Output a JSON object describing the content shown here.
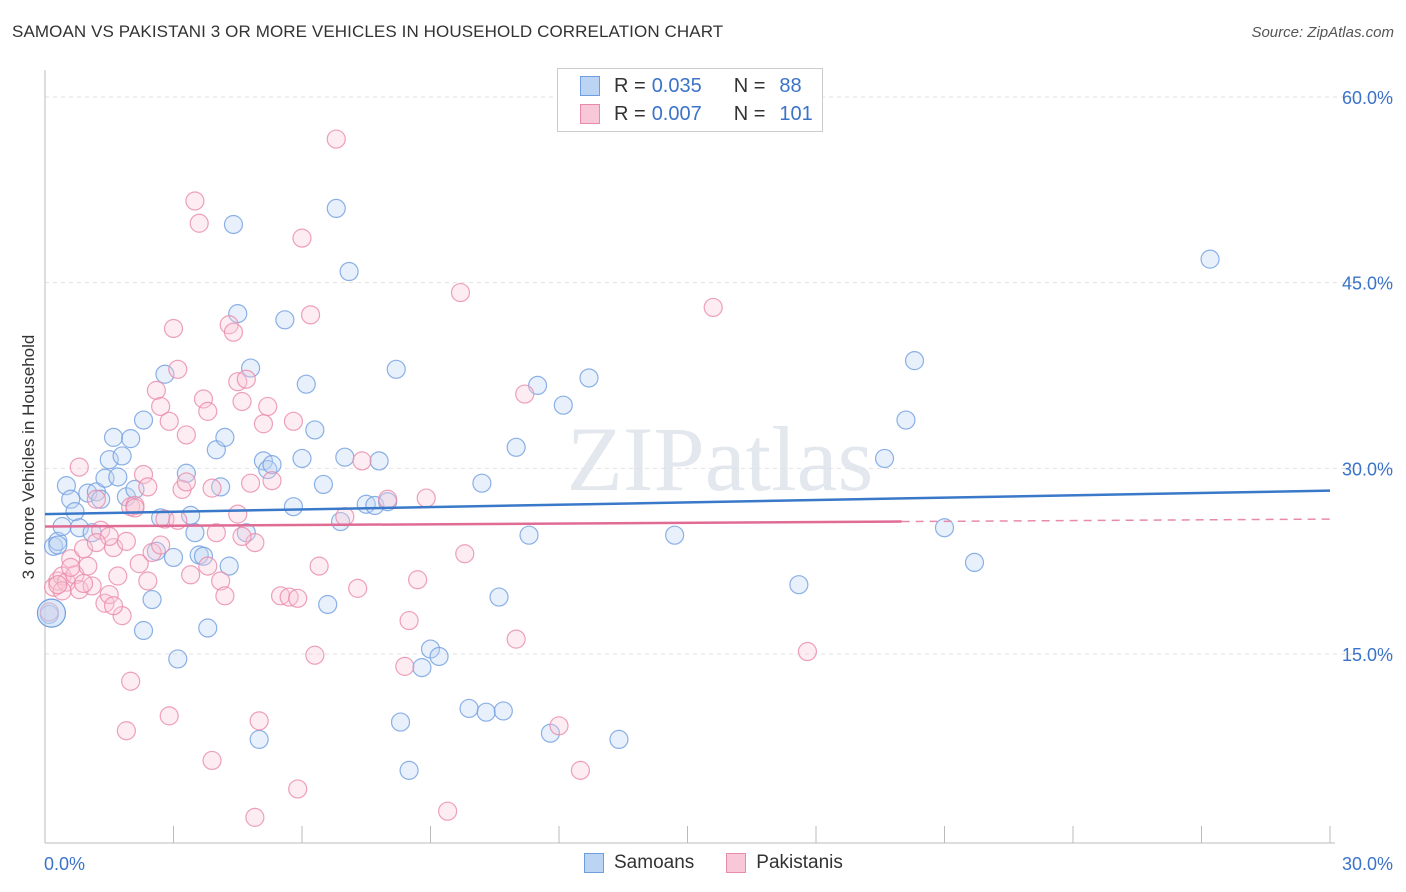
{
  "title": "SAMOAN VS PAKISTANI 3 OR MORE VEHICLES IN HOUSEHOLD CORRELATION CHART",
  "source": "Source: ZipAtlas.com",
  "watermark": "ZIPatlas",
  "legend": {
    "rows": [
      {
        "r_label": "R =",
        "r_value": "0.035",
        "n_label": "N =",
        "n_value": "88",
        "color": "#6f9ee0",
        "fill": "#bcd4f3"
      },
      {
        "r_label": "R =",
        "r_value": "0.007",
        "n_label": "N =",
        "n_value": "101",
        "color": "#e88aaa",
        "fill": "#f8c8d8"
      }
    ]
  },
  "bottom_legend": [
    {
      "label": "Samoans",
      "color": "#6f9ee0",
      "fill": "#bcd4f3"
    },
    {
      "label": "Pakistanis",
      "color": "#e88aaa",
      "fill": "#f8c8d8"
    }
  ],
  "chart_data": {
    "type": "scatter",
    "title": "SAMOAN VS PAKISTANI 3 OR MORE VEHICLES IN HOUSEHOLD CORRELATION CHART",
    "ylabel": "3 or more Vehicles in Household",
    "xlabel": "",
    "xlim": [
      0,
      30
    ],
    "ylim": [
      0,
      62
    ],
    "x_ticks": [
      "0.0%",
      "30.0%"
    ],
    "y_ticks": [
      {
        "value": 15,
        "label": "15.0%"
      },
      {
        "value": 30,
        "label": "30.0%"
      },
      {
        "value": 45,
        "label": "45.0%"
      },
      {
        "value": 60,
        "label": "60.0%"
      }
    ],
    "grid": true,
    "legend_position": "top-center",
    "series": [
      {
        "name": "Samoans",
        "color": "#6f9ee0",
        "trend": {
          "x": [
            0,
            30
          ],
          "y": [
            26.3,
            28.2
          ]
        },
        "points": [
          [
            0.1,
            18.2
          ],
          [
            0.2,
            23.7
          ],
          [
            0.3,
            24.1
          ],
          [
            0.4,
            25.3
          ],
          [
            0.5,
            28.6
          ],
          [
            0.6,
            27.5
          ],
          [
            0.7,
            26.5
          ],
          [
            0.8,
            25.2
          ],
          [
            1.0,
            28.0
          ],
          [
            1.1,
            24.8
          ],
          [
            1.2,
            28.1
          ],
          [
            1.4,
            29.2
          ],
          [
            1.5,
            30.7
          ],
          [
            1.6,
            32.5
          ],
          [
            1.7,
            29.3
          ],
          [
            1.8,
            31.0
          ],
          [
            1.9,
            27.7
          ],
          [
            2.0,
            32.4
          ],
          [
            2.1,
            28.3
          ],
          [
            2.3,
            16.9
          ],
          [
            2.3,
            33.9
          ],
          [
            2.5,
            19.4
          ],
          [
            2.6,
            23.3
          ],
          [
            2.7,
            26.0
          ],
          [
            2.8,
            37.6
          ],
          [
            3.0,
            22.8
          ],
          [
            3.1,
            14.6
          ],
          [
            3.3,
            29.6
          ],
          [
            3.4,
            26.2
          ],
          [
            3.5,
            24.8
          ],
          [
            3.6,
            23.0
          ],
          [
            3.7,
            22.9
          ],
          [
            3.8,
            17.1
          ],
          [
            4.0,
            31.5
          ],
          [
            4.1,
            28.5
          ],
          [
            4.2,
            32.5
          ],
          [
            4.3,
            22.1
          ],
          [
            4.4,
            49.7
          ],
          [
            4.5,
            42.5
          ],
          [
            4.7,
            24.8
          ],
          [
            4.8,
            38.1
          ],
          [
            5.0,
            8.1
          ],
          [
            5.1,
            30.6
          ],
          [
            5.2,
            29.9
          ],
          [
            5.3,
            30.3
          ],
          [
            5.6,
            42.0
          ],
          [
            5.8,
            26.9
          ],
          [
            6.0,
            30.8
          ],
          [
            6.1,
            36.8
          ],
          [
            6.3,
            33.1
          ],
          [
            6.5,
            28.7
          ],
          [
            6.6,
            19.0
          ],
          [
            6.8,
            51.0
          ],
          [
            6.9,
            25.7
          ],
          [
            7.0,
            30.9
          ],
          [
            7.1,
            45.9
          ],
          [
            7.5,
            27.1
          ],
          [
            7.7,
            27.0
          ],
          [
            7.8,
            30.6
          ],
          [
            8.0,
            27.3
          ],
          [
            8.2,
            38.0
          ],
          [
            8.3,
            9.5
          ],
          [
            8.5,
            5.6
          ],
          [
            8.8,
            13.9
          ],
          [
            9.0,
            15.4
          ],
          [
            9.2,
            14.8
          ],
          [
            9.9,
            10.6
          ],
          [
            10.2,
            28.8
          ],
          [
            10.3,
            10.3
          ],
          [
            10.6,
            19.6
          ],
          [
            10.7,
            10.4
          ],
          [
            11.0,
            31.7
          ],
          [
            11.3,
            24.6
          ],
          [
            11.5,
            36.7
          ],
          [
            11.8,
            8.6
          ],
          [
            12.1,
            35.1
          ],
          [
            12.7,
            37.3
          ],
          [
            13.4,
            8.1
          ],
          [
            14.7,
            24.6
          ],
          [
            17.6,
            20.6
          ],
          [
            19.6,
            30.8
          ],
          [
            20.1,
            33.9
          ],
          [
            20.3,
            38.7
          ],
          [
            21.0,
            25.2
          ],
          [
            21.7,
            22.4
          ],
          [
            27.2,
            46.9
          ],
          [
            0.3,
            23.8
          ],
          [
            1.3,
            27.5
          ]
        ]
      },
      {
        "name": "Pakistanis",
        "color": "#e88aaa",
        "trend": {
          "x": [
            0,
            20
          ],
          "y": [
            25.3,
            25.7
          ]
        },
        "trend_dashed": {
          "x": [
            20,
            30
          ],
          "y": [
            25.7,
            25.9
          ]
        },
        "points": [
          [
            0.1,
            18.4
          ],
          [
            0.2,
            20.4
          ],
          [
            0.3,
            20.9
          ],
          [
            0.4,
            21.3
          ],
          [
            0.5,
            20.8
          ],
          [
            0.6,
            22.7
          ],
          [
            0.7,
            21.4
          ],
          [
            0.8,
            20.2
          ],
          [
            0.9,
            23.5
          ],
          [
            1.0,
            22.1
          ],
          [
            1.1,
            20.5
          ],
          [
            1.2,
            27.5
          ],
          [
            1.3,
            25.0
          ],
          [
            1.4,
            19.1
          ],
          [
            1.5,
            19.8
          ],
          [
            1.6,
            23.6
          ],
          [
            1.7,
            21.3
          ],
          [
            1.8,
            18.1
          ],
          [
            1.9,
            24.1
          ],
          [
            2.0,
            26.9
          ],
          [
            2.1,
            27.0
          ],
          [
            2.2,
            22.3
          ],
          [
            2.3,
            29.5
          ],
          [
            2.4,
            20.9
          ],
          [
            2.5,
            23.2
          ],
          [
            2.6,
            36.3
          ],
          [
            2.7,
            35.0
          ],
          [
            2.8,
            25.9
          ],
          [
            2.9,
            33.8
          ],
          [
            3.0,
            41.3
          ],
          [
            3.1,
            38.0
          ],
          [
            3.2,
            28.3
          ],
          [
            3.3,
            32.7
          ],
          [
            3.4,
            21.4
          ],
          [
            3.5,
            51.6
          ],
          [
            3.6,
            49.8
          ],
          [
            3.7,
            35.6
          ],
          [
            3.8,
            34.6
          ],
          [
            3.9,
            28.4
          ],
          [
            4.0,
            24.8
          ],
          [
            4.1,
            20.9
          ],
          [
            4.2,
            19.7
          ],
          [
            4.3,
            41.6
          ],
          [
            4.4,
            41.0
          ],
          [
            4.5,
            37.0
          ],
          [
            4.6,
            35.4
          ],
          [
            4.7,
            37.2
          ],
          [
            4.8,
            28.8
          ],
          [
            4.9,
            24.0
          ],
          [
            5.0,
            9.6
          ],
          [
            5.1,
            33.6
          ],
          [
            5.2,
            35.0
          ],
          [
            5.3,
            29.0
          ],
          [
            5.5,
            19.7
          ],
          [
            5.7,
            19.6
          ],
          [
            5.8,
            33.8
          ],
          [
            5.9,
            19.5
          ],
          [
            6.0,
            48.6
          ],
          [
            6.2,
            42.4
          ],
          [
            6.3,
            14.9
          ],
          [
            6.4,
            22.1
          ],
          [
            6.8,
            56.6
          ],
          [
            7.0,
            26.1
          ],
          [
            7.3,
            20.3
          ],
          [
            7.4,
            30.6
          ],
          [
            8.0,
            27.5
          ],
          [
            8.4,
            14.0
          ],
          [
            8.5,
            17.7
          ],
          [
            8.7,
            21.0
          ],
          [
            8.9,
            27.6
          ],
          [
            9.4,
            2.3
          ],
          [
            9.7,
            44.2
          ],
          [
            9.8,
            23.1
          ],
          [
            11.0,
            16.2
          ],
          [
            11.2,
            36.0
          ],
          [
            12.0,
            9.2
          ],
          [
            12.5,
            5.6
          ],
          [
            15.6,
            43.0
          ],
          [
            17.8,
            15.2
          ],
          [
            0.8,
            30.1
          ],
          [
            1.9,
            8.8
          ],
          [
            2.0,
            12.8
          ],
          [
            2.9,
            10.0
          ],
          [
            3.9,
            6.4
          ],
          [
            4.9,
            1.8
          ],
          [
            5.9,
            4.1
          ],
          [
            2.4,
            28.5
          ],
          [
            3.1,
            25.8
          ],
          [
            1.5,
            24.5
          ],
          [
            0.6,
            22.0
          ],
          [
            2.7,
            23.8
          ],
          [
            3.3,
            28.9
          ],
          [
            4.6,
            24.5
          ],
          [
            1.2,
            24.0
          ],
          [
            2.1,
            26.8
          ],
          [
            0.9,
            20.7
          ],
          [
            1.6,
            18.9
          ],
          [
            3.8,
            22.1
          ],
          [
            4.5,
            26.3
          ],
          [
            0.4,
            20.1
          ],
          [
            0.3,
            20.6
          ]
        ]
      }
    ]
  }
}
